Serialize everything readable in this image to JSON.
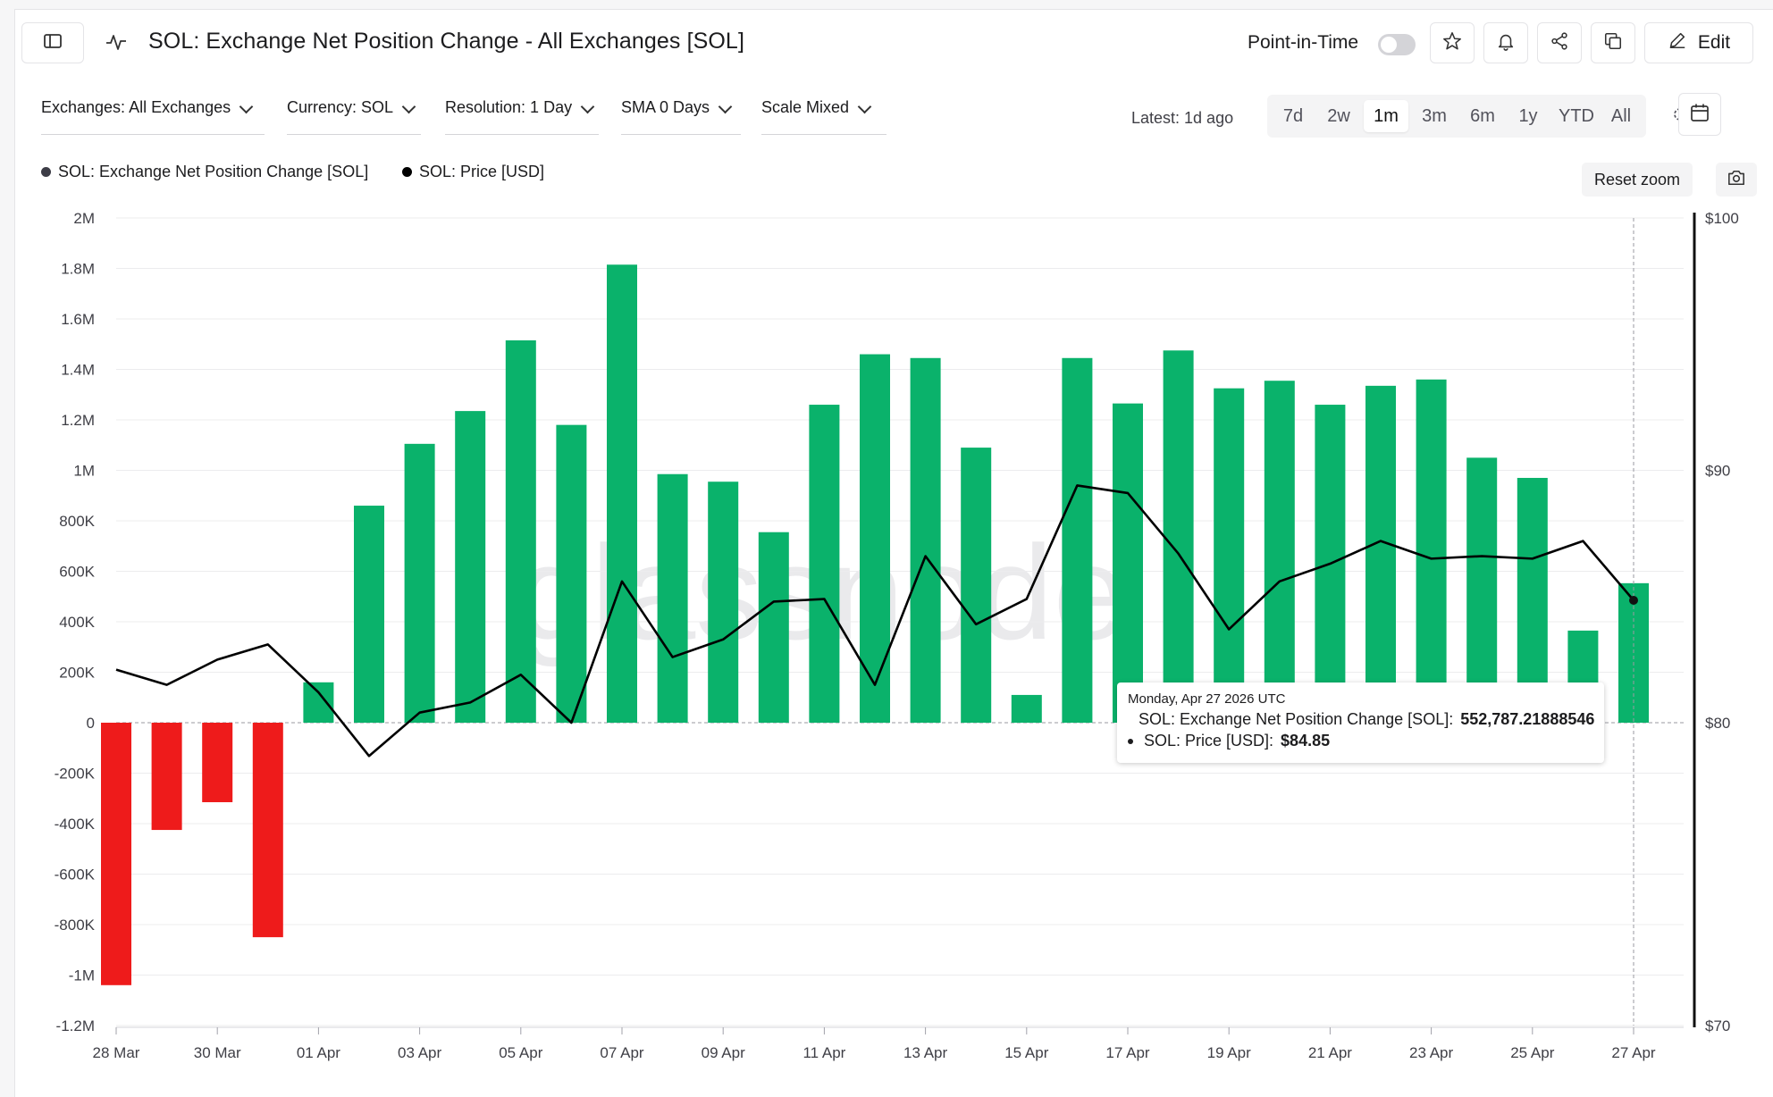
{
  "header": {
    "title": "SOL: Exchange Net Position Change - All Exchanges [SOL]",
    "point_in_time_label": "Point-in-Time",
    "point_in_time_enabled": false,
    "edit_label": "Edit"
  },
  "filters": [
    {
      "label": "Exchanges: All Exchanges"
    },
    {
      "label": "Currency: SOL"
    },
    {
      "label": "Resolution: 1 Day"
    },
    {
      "label": "SMA 0 Days"
    },
    {
      "label": "Scale Mixed"
    }
  ],
  "latest_label": "Latest: 1d ago",
  "ranges": [
    {
      "label": "7d",
      "active": false
    },
    {
      "label": "2w",
      "active": false
    },
    {
      "label": "1m",
      "active": true
    },
    {
      "label": "3m",
      "active": false
    },
    {
      "label": "6m",
      "active": false
    },
    {
      "label": "1y",
      "active": false
    },
    {
      "label": "YTD",
      "active": false
    },
    {
      "label": "All",
      "active": false
    }
  ],
  "reset_zoom_label": "Reset zoom",
  "watermark": "glassnode",
  "tooltip": {
    "date": "Monday, Apr 27 2026 UTC",
    "rows": [
      {
        "label": "SOL: Exchange Net Position Change [SOL]:",
        "value": "552,787.21888546"
      },
      {
        "label": "SOL: Price [USD]:",
        "value": "$84.85"
      }
    ]
  },
  "colors": {
    "positive": "#0ab26b",
    "negative": "#ee1b1b",
    "price_line": "#000000",
    "net_position_legend": "#3c3c46"
  },
  "chart_data": {
    "type": "bar",
    "x_tick_labels": [
      "28 Mar",
      "30 Mar",
      "01 Apr",
      "03 Apr",
      "05 Apr",
      "07 Apr",
      "09 Apr",
      "11 Apr",
      "13 Apr",
      "15 Apr",
      "17 Apr",
      "19 Apr",
      "21 Apr",
      "23 Apr",
      "25 Apr",
      "27 Apr"
    ],
    "left_axis": {
      "ylim": [
        -1200000,
        2000000
      ],
      "ticks": [
        {
          "value": 2000000,
          "label": "2M"
        },
        {
          "value": 1800000,
          "label": "1.8M"
        },
        {
          "value": 1600000,
          "label": "1.6M"
        },
        {
          "value": 1400000,
          "label": "1.4M"
        },
        {
          "value": 1200000,
          "label": "1.2M"
        },
        {
          "value": 1000000,
          "label": "1M"
        },
        {
          "value": 800000,
          "label": "800K"
        },
        {
          "value": 600000,
          "label": "600K"
        },
        {
          "value": 400000,
          "label": "400K"
        },
        {
          "value": 200000,
          "label": "200K"
        },
        {
          "value": 0,
          "label": "0"
        },
        {
          "value": -200000,
          "label": "-200K"
        },
        {
          "value": -400000,
          "label": "-400K"
        },
        {
          "value": -600000,
          "label": "-600K"
        },
        {
          "value": -800000,
          "label": "-800K"
        },
        {
          "value": -1000000,
          "label": "-1M"
        },
        {
          "value": -1200000,
          "label": "-1.2M"
        }
      ]
    },
    "right_axis": {
      "scale": "mixed",
      "ylim": [
        70,
        100
      ],
      "ticks": [
        {
          "value": 100,
          "label": "$100"
        },
        {
          "value": 90,
          "label": "$90"
        },
        {
          "value": 80,
          "label": "$80"
        },
        {
          "value": 70,
          "label": "$70"
        }
      ]
    },
    "series": [
      {
        "name": "SOL: Exchange Net Position Change [SOL]",
        "type": "bar",
        "values": [
          -1040000,
          -425000,
          -315000,
          -850000,
          160000,
          860000,
          1105000,
          1235000,
          1515000,
          1180000,
          1815000,
          985000,
          955000,
          755000,
          1260000,
          1460000,
          1445000,
          1090000,
          110000,
          1445000,
          1265000,
          1475000,
          1325000,
          1355000,
          1260000,
          1335000,
          1360000,
          1050000,
          970000,
          365000,
          552787.21888546
        ]
      },
      {
        "name": "SOL: Price [USD]",
        "type": "line",
        "values": [
          82.1,
          81.5,
          82.5,
          83.1,
          81.2,
          78.9,
          80.4,
          80.8,
          81.9,
          80.0,
          85.6,
          82.6,
          83.3,
          84.8,
          84.9,
          81.5,
          86.6,
          83.9,
          84.9,
          89.4,
          89.1,
          86.7,
          83.7,
          85.6,
          86.3,
          87.2,
          86.5,
          86.6,
          86.5,
          87.2,
          84.85
        ]
      }
    ],
    "grid": true,
    "legend_position": "top-left"
  }
}
